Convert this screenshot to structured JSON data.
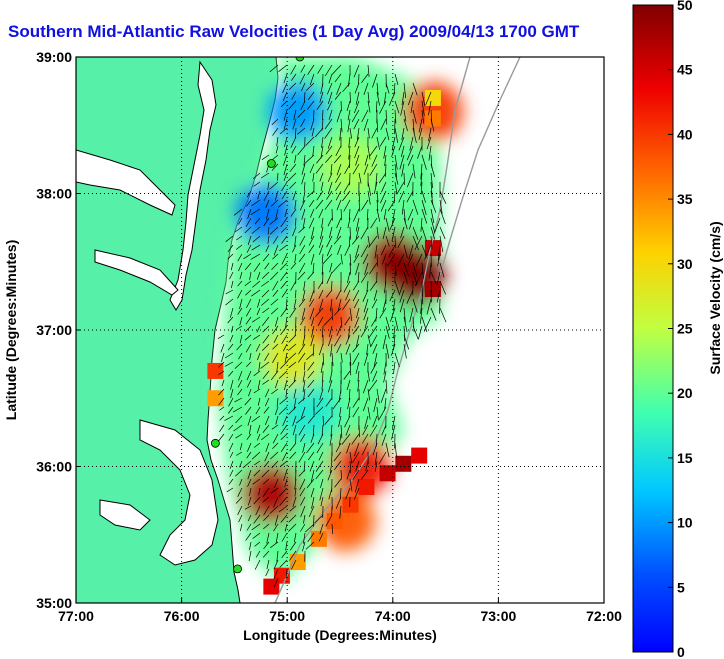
{
  "title": {
    "text": "Southern Mid-Atlantic Raw Velocities (1 Day Avg) 2009/04/13 1700 GMT",
    "color": "#1010e0"
  },
  "colors": {
    "land": "#56f0a8",
    "coast": "#000000",
    "grid": "#000000",
    "vector": "#000000",
    "station": "#22dd22",
    "isobath": "#9a9a9a"
  },
  "chart_data": {
    "type": "heatmap",
    "xlabel": "Longitude (Degrees:Minutes)",
    "ylabel": "Latitude (Degrees:Minutes)",
    "xlim": [
      -77,
      -72
    ],
    "ylim": [
      35,
      39
    ],
    "x_ticks": [
      -77,
      -76,
      -75,
      -74,
      -73,
      -72
    ],
    "x_tick_labels": [
      "77:00",
      "76:00",
      "75:00",
      "74:00",
      "73:00",
      "72:00"
    ],
    "y_ticks": [
      35,
      36,
      37,
      38,
      39
    ],
    "y_tick_labels": [
      "35:00",
      "36:00",
      "37:00",
      "38:00",
      "39:00"
    ],
    "grid": true,
    "grid_style": "dotted",
    "colorbar": {
      "label": "Surface Velocity (cm/s)",
      "range": [
        0,
        50
      ],
      "ticks": [
        0,
        5,
        10,
        15,
        20,
        25,
        30,
        35,
        40,
        45,
        50
      ],
      "tick_labels": [
        "0",
        "5",
        "10",
        "15",
        "20",
        "25",
        "30",
        "35",
        "40",
        "45",
        "50"
      ],
      "colormap": "jet"
    },
    "stations": [
      {
        "lon": -74.88,
        "lat": 39.0
      },
      {
        "lon": -75.15,
        "lat": 38.22
      },
      {
        "lon": -75.68,
        "lat": 36.17
      },
      {
        "lon": -75.47,
        "lat": 35.25
      }
    ],
    "velocity_features": [
      {
        "lon": -74.0,
        "lat": 37.5,
        "speed": 48
      },
      {
        "lon": -73.78,
        "lat": 37.4,
        "speed": 50
      },
      {
        "lon": -75.15,
        "lat": 35.8,
        "speed": 47
      },
      {
        "lon": -74.3,
        "lat": 36.0,
        "speed": 42
      },
      {
        "lon": -74.45,
        "lat": 35.6,
        "speed": 38
      },
      {
        "lon": -74.6,
        "lat": 37.1,
        "speed": 40
      },
      {
        "lon": -74.9,
        "lat": 38.6,
        "speed": 10
      },
      {
        "lon": -75.2,
        "lat": 37.85,
        "speed": 8
      },
      {
        "lon": -74.4,
        "lat": 38.2,
        "speed": 24
      },
      {
        "lon": -74.8,
        "lat": 36.4,
        "speed": 16
      },
      {
        "lon": -73.62,
        "lat": 38.6,
        "speed": 40
      },
      {
        "lon": -74.95,
        "lat": 36.8,
        "speed": 28
      }
    ]
  }
}
